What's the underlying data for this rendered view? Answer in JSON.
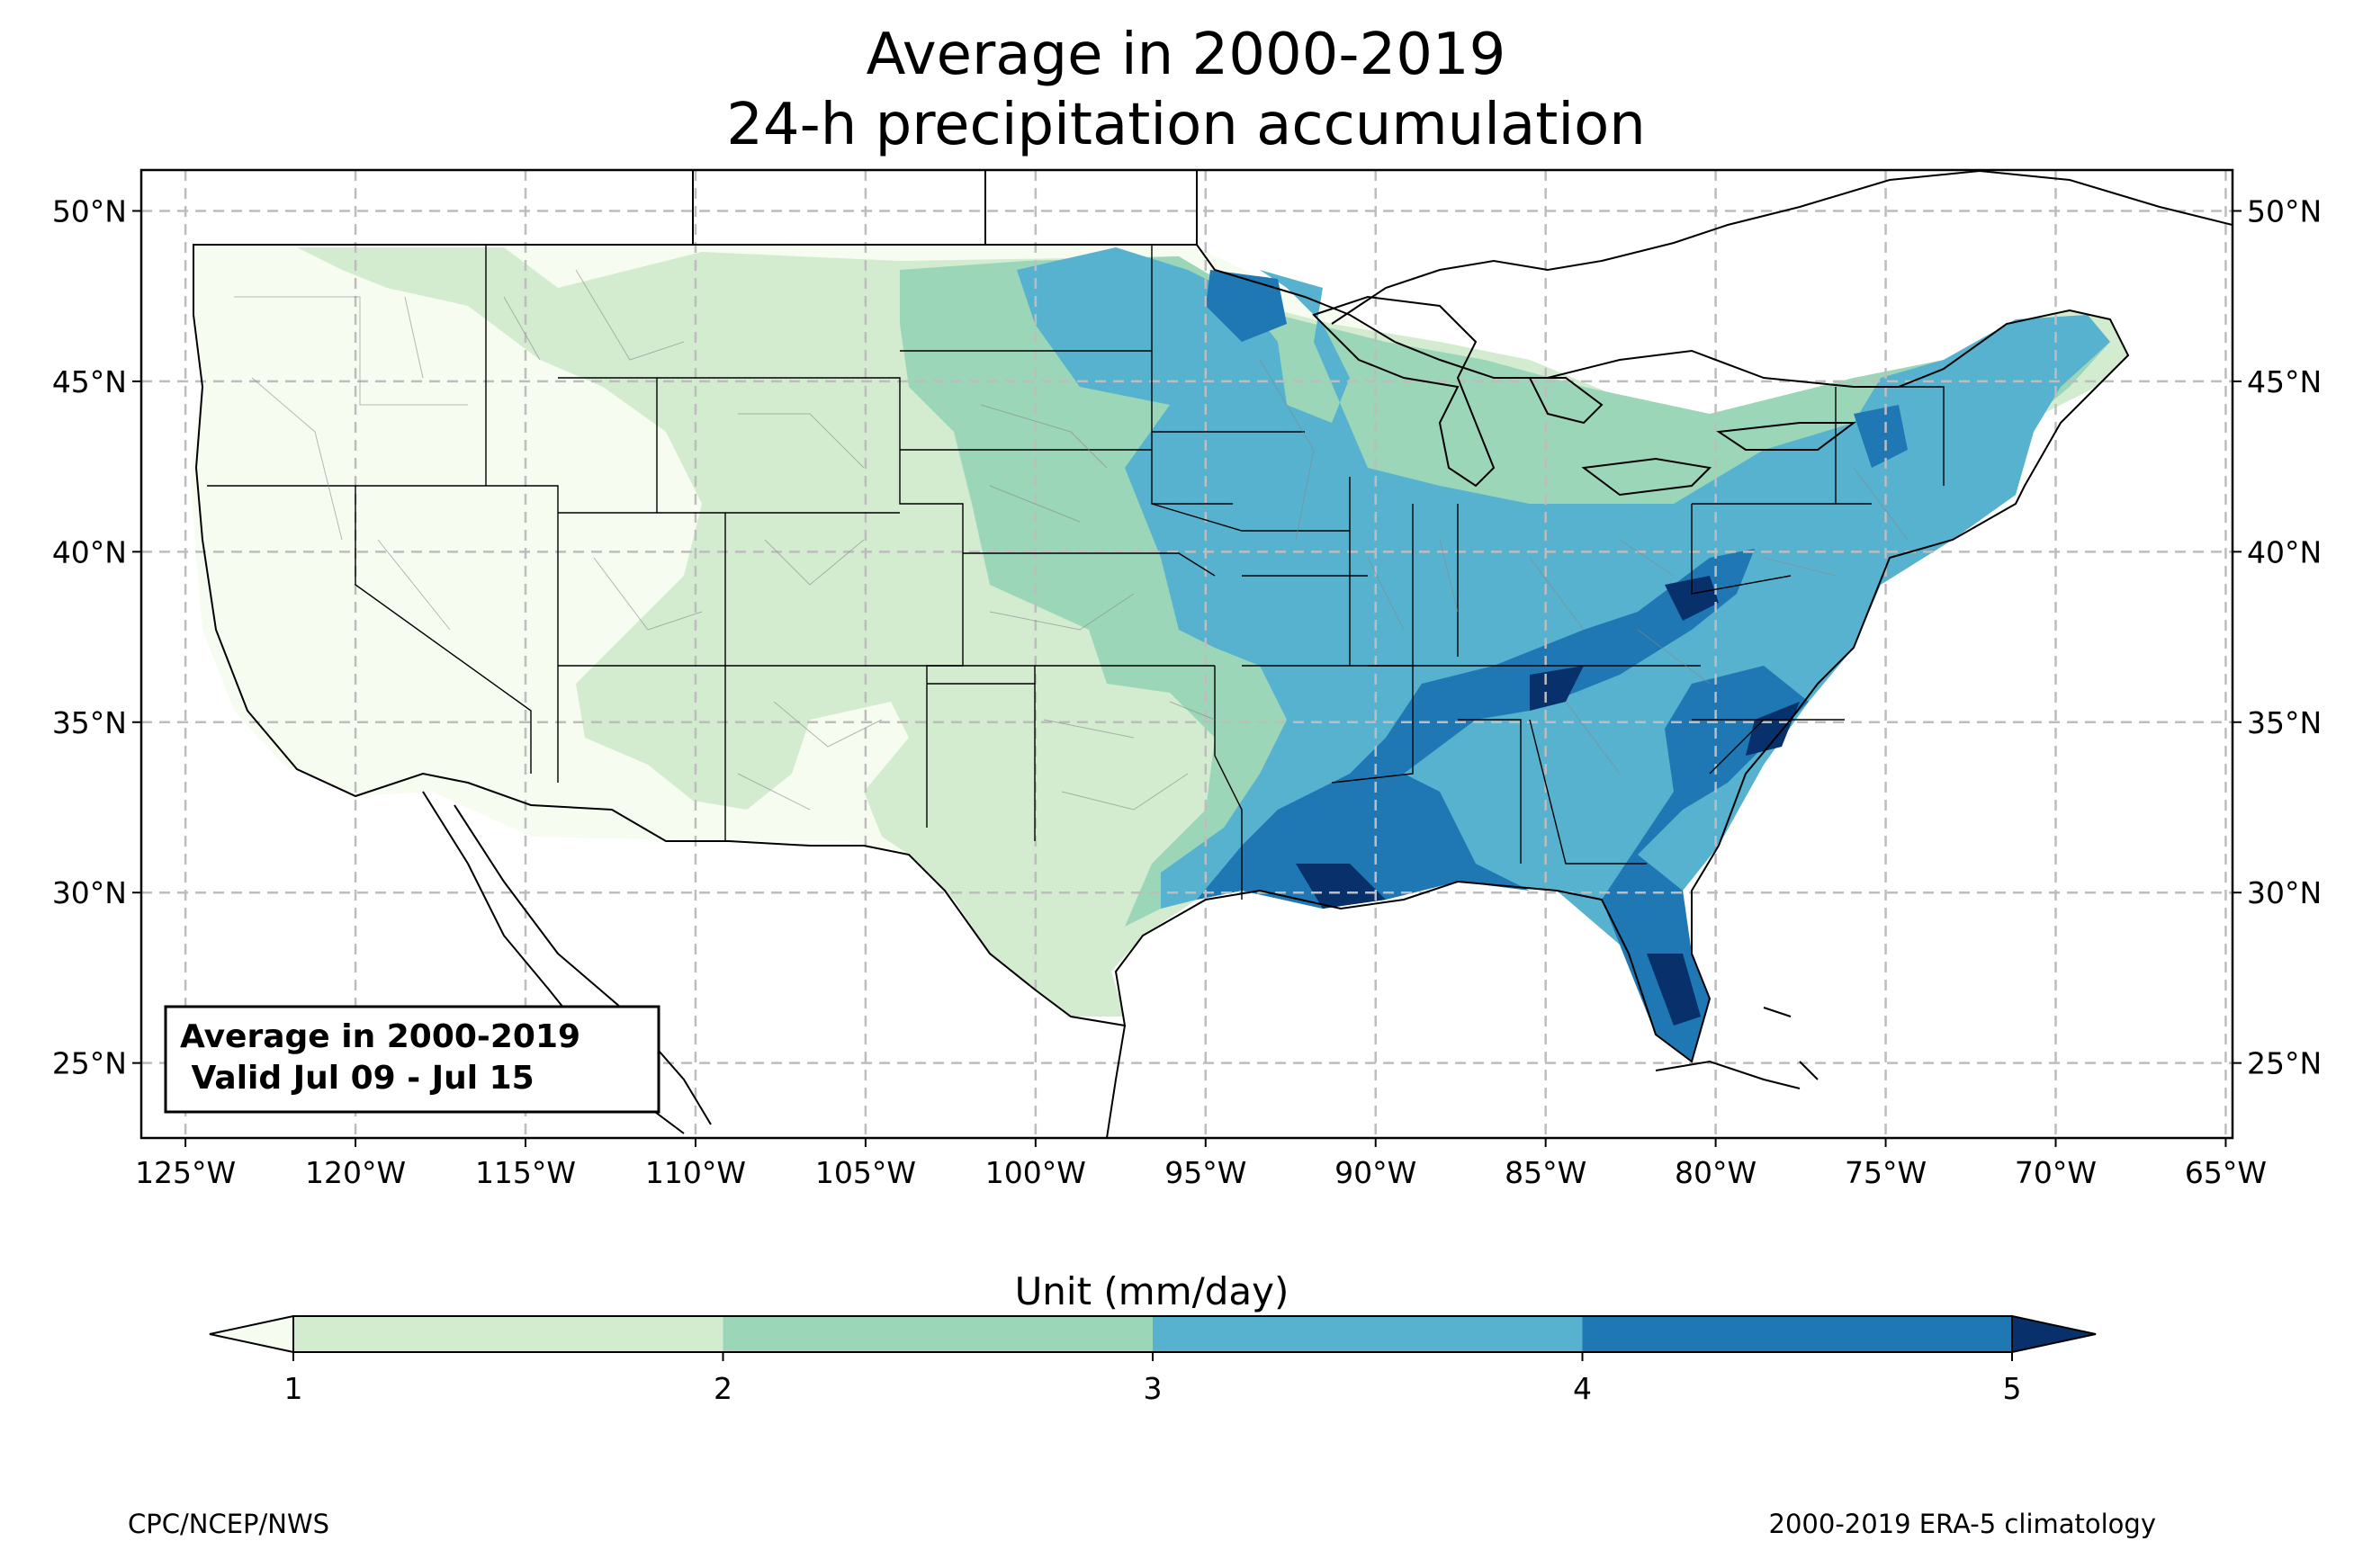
{
  "title": {
    "line1": "Average in 2000-2019",
    "line2": "24-h precipitation accumulation"
  },
  "map": {
    "lon_ticks": [
      "125°W",
      "120°W",
      "115°W",
      "110°W",
      "105°W",
      "100°W",
      "95°W",
      "90°W",
      "85°W",
      "80°W",
      "75°W",
      "70°W",
      "65°W"
    ],
    "lat_ticks": [
      "50°N",
      "45°N",
      "40°N",
      "35°N",
      "30°N",
      "25°N"
    ],
    "lon_range": [
      -126.3,
      -64.8
    ],
    "lat_range": [
      22.8,
      51.2
    ],
    "gridlines": true,
    "info_box": {
      "line1": "Average in 2000-2019",
      "line2": " Valid Jul 09 - Jul 15"
    },
    "field_description_regions": {
      "west": "under 1",
      "plains": "1-3",
      "upper_midwest": "3-4",
      "southeast": "3-5+",
      "gulf_coast_florida_carolinas": "4-5+"
    }
  },
  "colorbar": {
    "label": "Unit (mm/day)",
    "ticks": [
      "1",
      "2",
      "3",
      "4",
      "5"
    ],
    "colors": [
      "#f7fcf0",
      "#d3ecd0",
      "#9cd6b9",
      "#56b2cf",
      "#1f78b4",
      "#08306b"
    ],
    "extend": "both"
  },
  "footer": {
    "left": "CPC/NCEP/NWS",
    "right": "2000-2019 ERA-5 climatology"
  }
}
